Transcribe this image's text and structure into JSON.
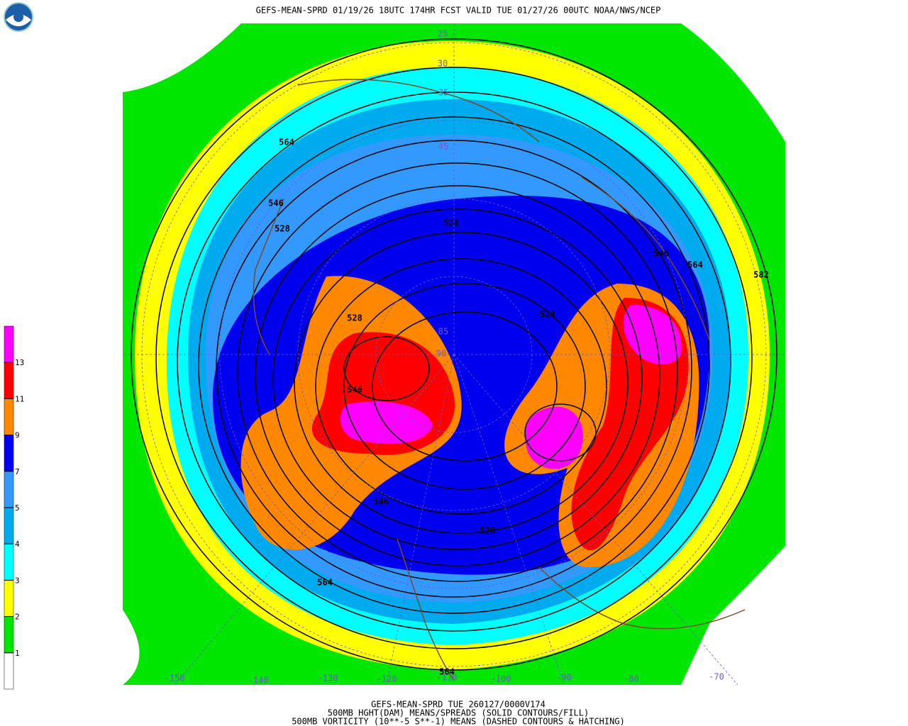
{
  "header": {
    "title": "GEFS-MEAN-SPRD 01/19/26 18UTC 174HR FCST VALID TUE 01/27/26 00UTC NOAA/NWS/NCEP"
  },
  "footer": [
    "GEFS-MEAN-SPRD TUE 260127/0000V174",
    "500MB HGHT(DAM) MEANS/SPREADS (SOLID CONTOURS/FILL)",
    "500MB VORTICITY (10**-5 S**-1) MEANS (DASHED CONTOURS & HATCHING)"
  ],
  "colorbar": {
    "levels": [
      1,
      2,
      3,
      4,
      5,
      7,
      9,
      11,
      13
    ],
    "colors": [
      "#ffffff",
      "#00e600",
      "#ffff00",
      "#00ffff",
      "#00aaee",
      "#3399ff",
      "#0000ee",
      "#ff8800",
      "#ff0000",
      "#ff00ff"
    ]
  },
  "contour_labels": [
    564,
    546,
    528,
    528,
    528,
    546,
    564,
    582,
    528,
    546,
    564,
    528,
    546,
    564
  ],
  "latitude_labels": [
    25,
    30,
    35,
    45,
    85,
    90
  ],
  "longitude_labels": [
    -150,
    -140,
    -130,
    -120,
    -110,
    -100,
    -90,
    -80,
    -70
  ]
}
